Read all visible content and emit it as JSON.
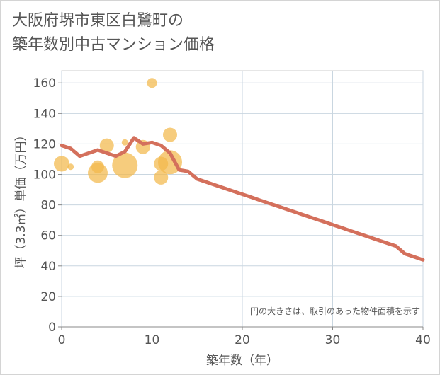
{
  "title_lines": [
    "大阪府堺市東区白鷺町の",
    "築年数別中古マンション価格"
  ],
  "chart_data": {
    "type": "scatter+line",
    "title": "大阪府堺市東区白鷺町の築年数別中古マンション価格",
    "xlabel": "築年数（年）",
    "ylabel": "坪（3.3㎡）単価（万円）",
    "note": "円の大きさは、取引のあった物件面積を示す",
    "xlim": [
      0,
      40
    ],
    "ylim": [
      0,
      168
    ],
    "xticks": [
      0,
      10,
      20,
      30,
      40
    ],
    "yticks": [
      0,
      20,
      40,
      60,
      80,
      100,
      120,
      140,
      160
    ],
    "grid": true,
    "colors": {
      "bubble": "#f2b84b",
      "line": "#d4705c",
      "grid": "#c9d6e0"
    },
    "bubbles": [
      {
        "x": 0,
        "y": 107,
        "size": 22
      },
      {
        "x": 1,
        "y": 105,
        "size": 9
      },
      {
        "x": 4,
        "y": 101,
        "size": 28
      },
      {
        "x": 4,
        "y": 105,
        "size": 18
      },
      {
        "x": 5,
        "y": 119,
        "size": 20
      },
      {
        "x": 7,
        "y": 121,
        "size": 9
      },
      {
        "x": 7,
        "y": 106,
        "size": 36
      },
      {
        "x": 9,
        "y": 118,
        "size": 20
      },
      {
        "x": 10,
        "y": 160,
        "size": 14
      },
      {
        "x": 11,
        "y": 98,
        "size": 20
      },
      {
        "x": 11,
        "y": 107,
        "size": 20
      },
      {
        "x": 12,
        "y": 126,
        "size": 20
      },
      {
        "x": 12,
        "y": 108,
        "size": 34
      }
    ],
    "line": {
      "x": [
        0,
        1,
        2,
        3,
        4,
        5,
        6,
        7,
        8,
        9,
        10,
        11,
        12,
        13,
        14,
        15,
        16,
        17,
        18,
        19,
        20,
        21,
        22,
        23,
        24,
        25,
        26,
        27,
        28,
        29,
        30,
        31,
        32,
        33,
        34,
        35,
        36,
        37,
        38,
        39,
        40
      ],
      "y": [
        119,
        117,
        112,
        114,
        116,
        114,
        112,
        115,
        124,
        120,
        121,
        119,
        114,
        103,
        102,
        97,
        95,
        93,
        91,
        89,
        87,
        85,
        83,
        81,
        79,
        77,
        75,
        73,
        71,
        69,
        67,
        65,
        63,
        61,
        59,
        57,
        55,
        53,
        48,
        46,
        44
      ]
    }
  }
}
